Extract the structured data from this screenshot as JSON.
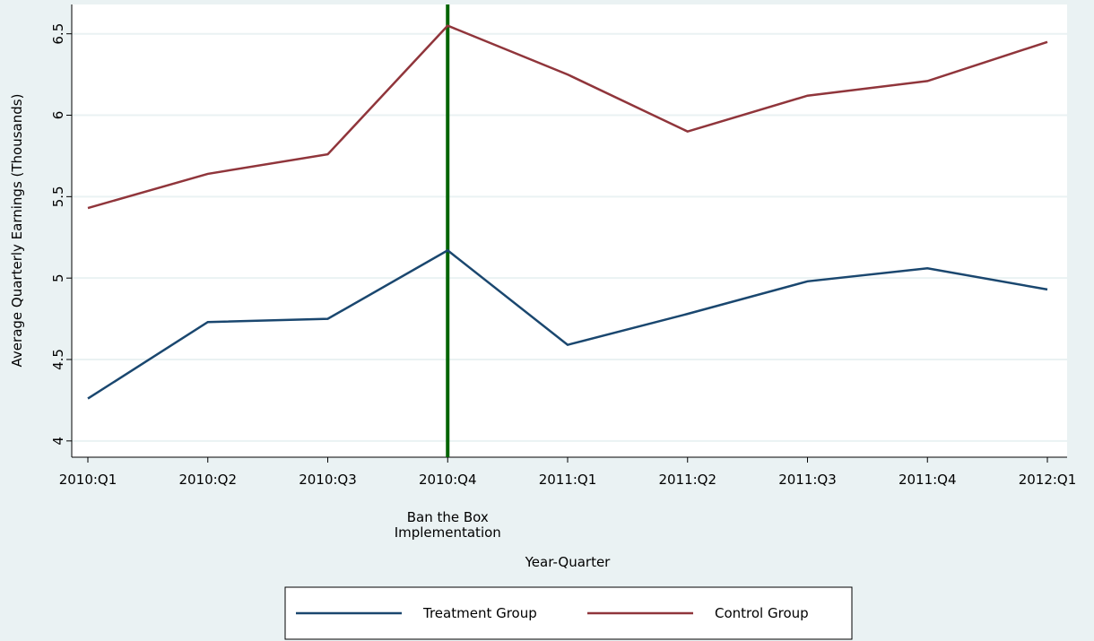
{
  "chart_data": {
    "type": "line",
    "x_label": "Year-Quarter",
    "y_label": "Average Quarterly Earnings (Thousands)",
    "categories": [
      "2010:Q1",
      "2010:Q2",
      "2010:Q3",
      "2010:Q4",
      "2011:Q1",
      "2011:Q2",
      "2011:Q3",
      "2011:Q4",
      "2012:Q1"
    ],
    "series": [
      {
        "name": "Treatment Group",
        "color": "#1a476f",
        "values": [
          4.26,
          4.73,
          4.75,
          5.17,
          4.59,
          4.78,
          4.98,
          5.06,
          4.93
        ]
      },
      {
        "name": "Control Group",
        "color": "#90353b",
        "values": [
          5.43,
          5.64,
          5.76,
          6.55,
          6.25,
          5.9,
          6.12,
          6.21,
          6.45
        ]
      }
    ],
    "ylim": [
      3.9,
      6.68
    ],
    "yticks": [
      4,
      4.5,
      5,
      5.5,
      6,
      6.5
    ],
    "grid": true,
    "vline_at": "2010:Q4",
    "vline_color": "#006400",
    "annotation": [
      "Ban the Box",
      "Implementation"
    ],
    "legend": "bottom"
  }
}
